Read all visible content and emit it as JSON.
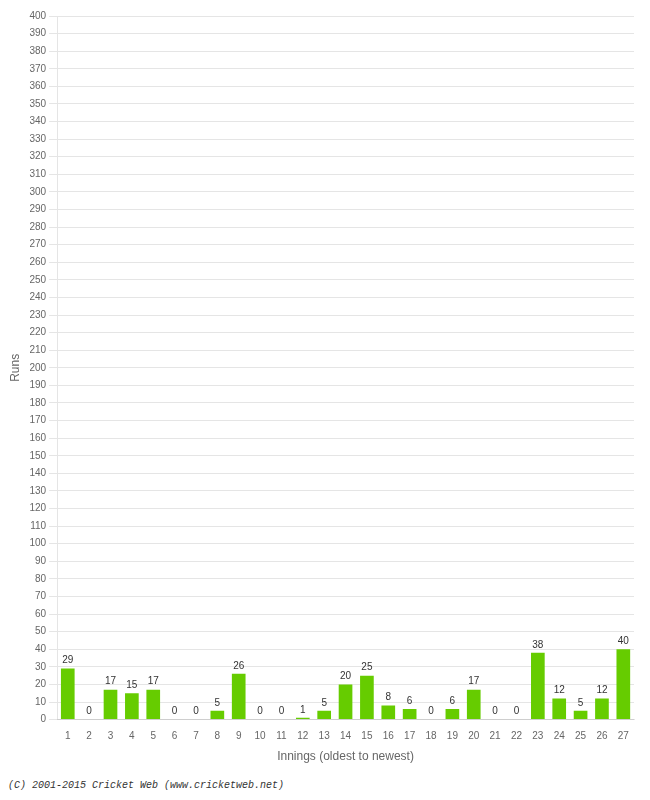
{
  "chart_data": {
    "type": "bar",
    "xlabel": "Innings (oldest to newest)",
    "ylabel": "Runs",
    "categories": [
      "1",
      "2",
      "3",
      "4",
      "5",
      "6",
      "7",
      "8",
      "9",
      "10",
      "11",
      "12",
      "13",
      "14",
      "15",
      "16",
      "17",
      "18",
      "19",
      "20",
      "21",
      "22",
      "23",
      "24",
      "25",
      "26",
      "27"
    ],
    "values": [
      29,
      0,
      17,
      15,
      17,
      0,
      0,
      5,
      26,
      0,
      0,
      1,
      5,
      20,
      25,
      8,
      6,
      0,
      6,
      17,
      0,
      0,
      38,
      12,
      5,
      12,
      40
    ],
    "color": "#66cc00",
    "ylim": [
      0,
      400
    ],
    "yticks": [
      0,
      10,
      20,
      30,
      40,
      50,
      60,
      70,
      80,
      90,
      100,
      110,
      120,
      130,
      140,
      150,
      160,
      170,
      180,
      190,
      200,
      210,
      220,
      230,
      240,
      250,
      260,
      270,
      280,
      290,
      300,
      310,
      320,
      330,
      340,
      350,
      360,
      370,
      380,
      390,
      400
    ],
    "grid": true,
    "data_labels": true,
    "footer": "(C) 2001-2015 Cricket Web (www.cricketweb.net)"
  }
}
